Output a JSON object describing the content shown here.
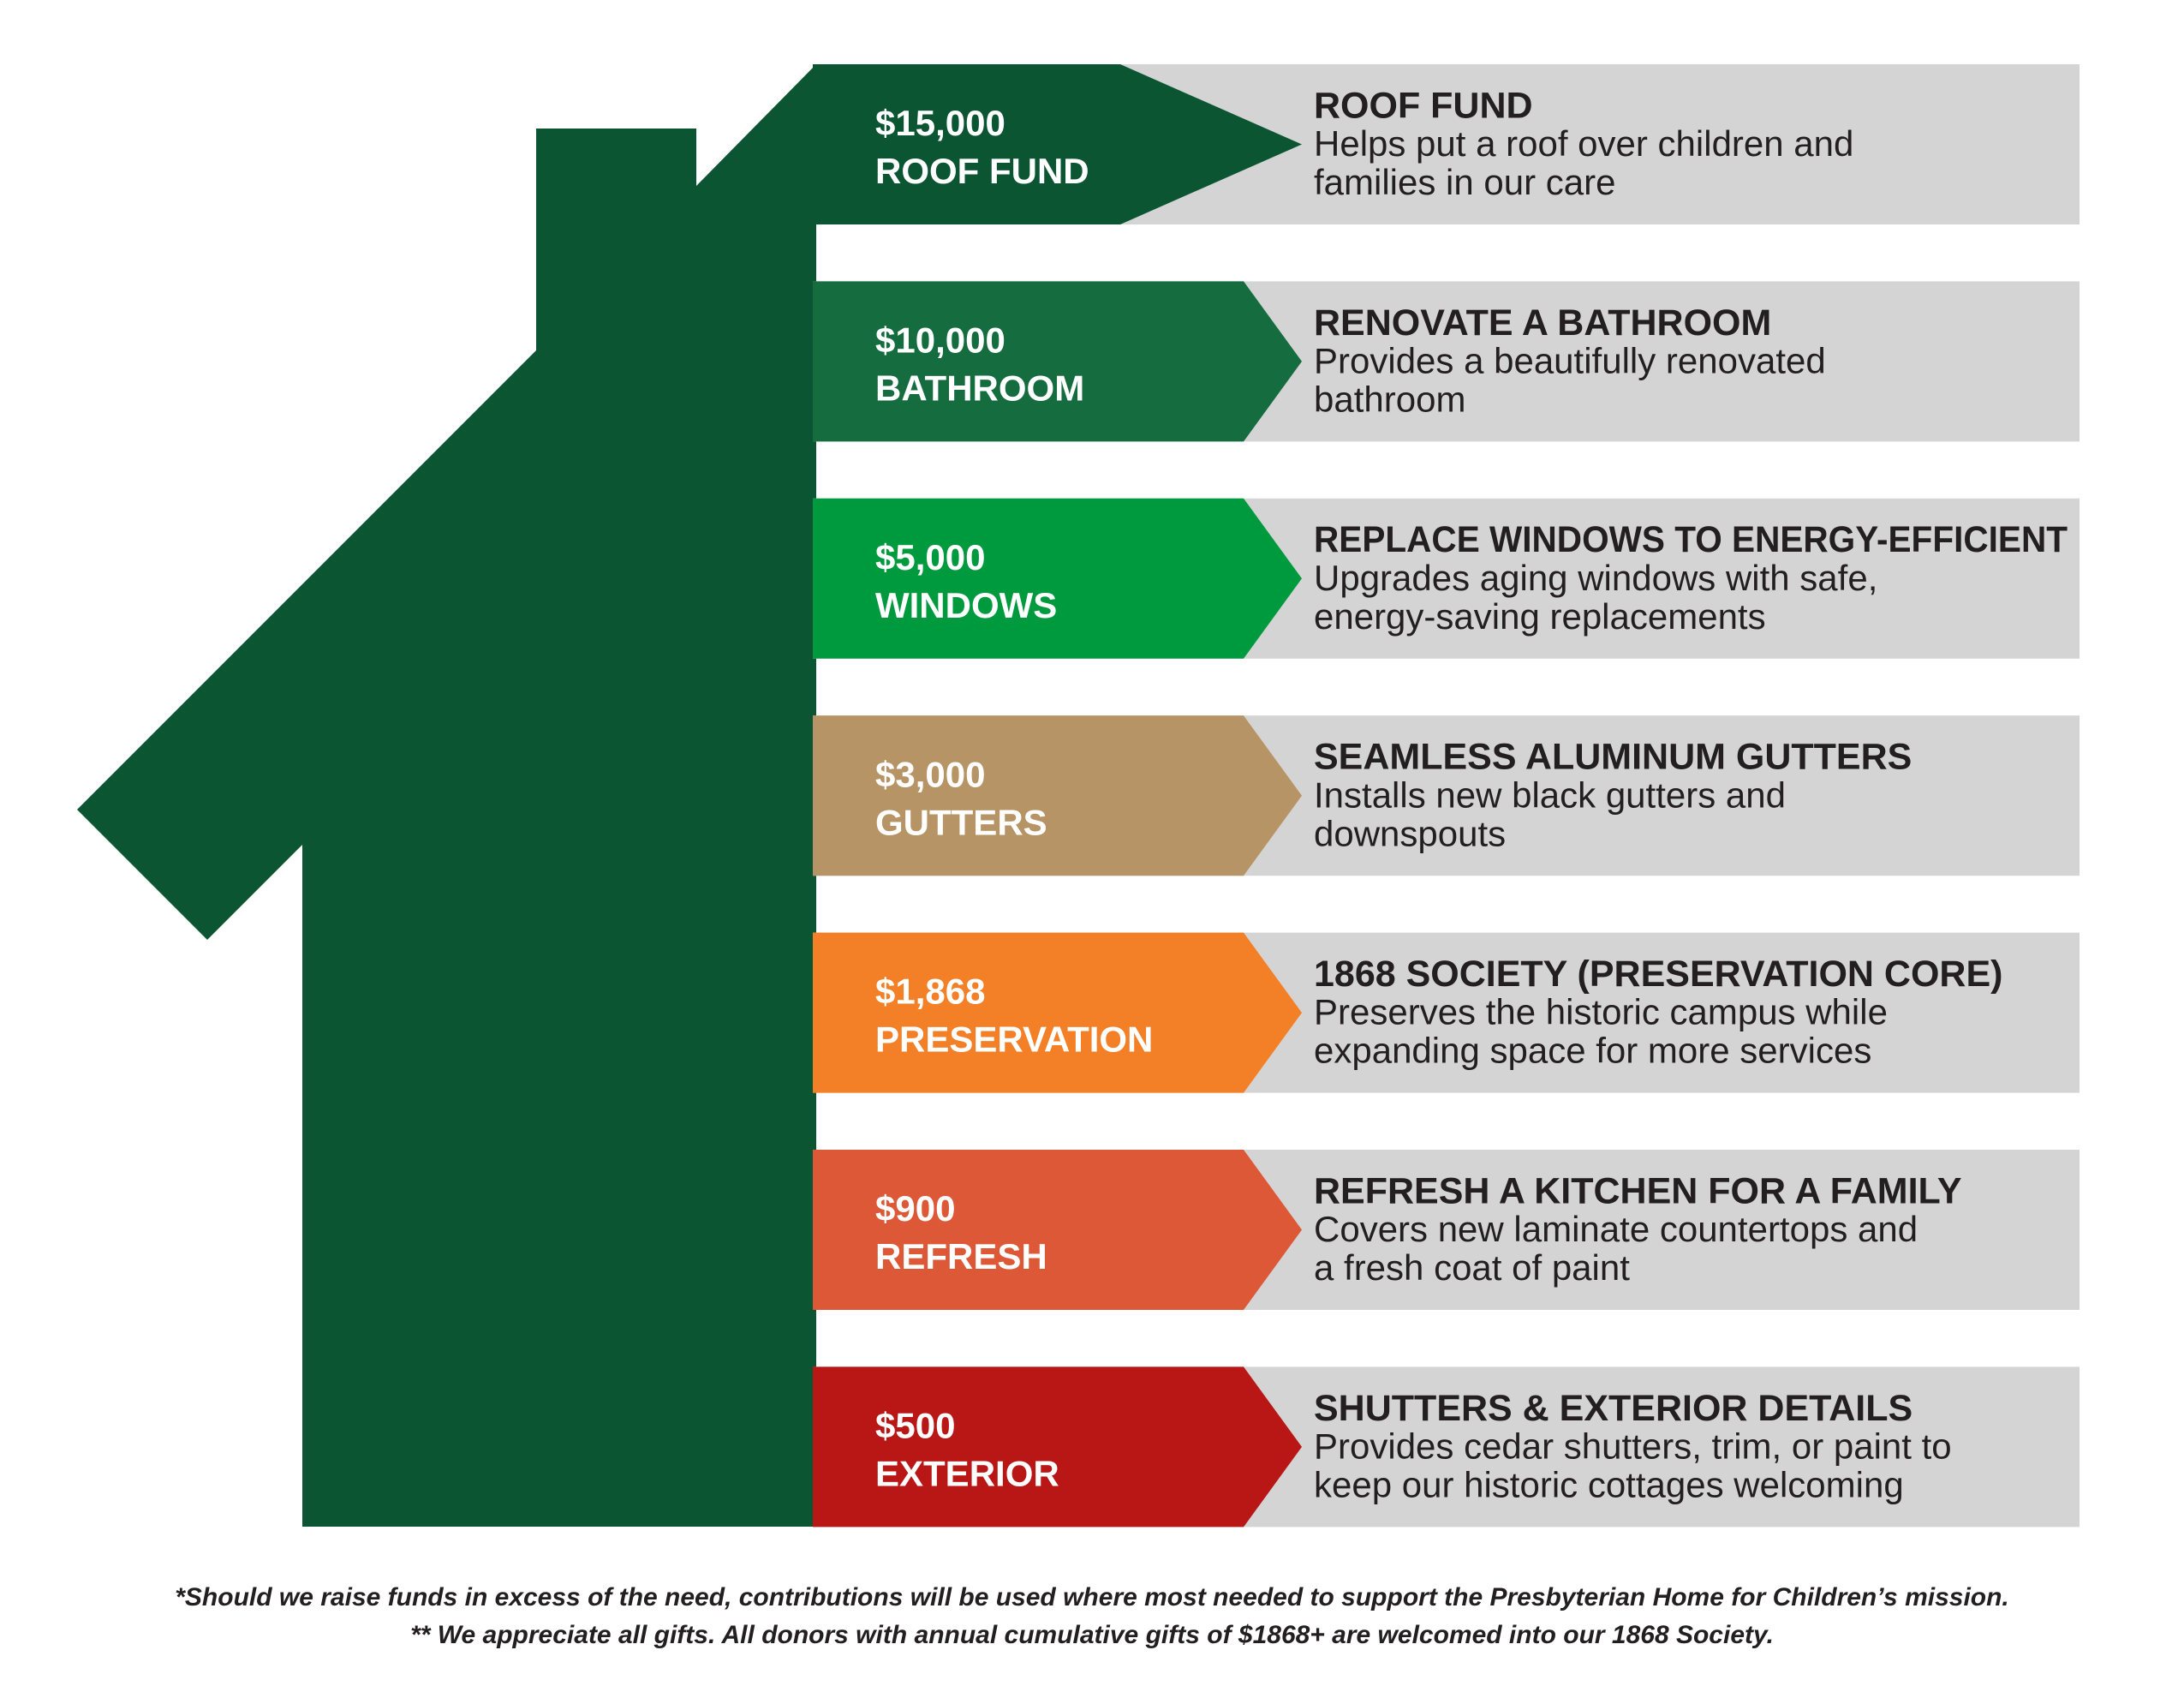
{
  "tiers": [
    {
      "amount": "$15,000",
      "label": "ROOF FUND",
      "title": "ROOF FUND",
      "description": [
        "Helps put a roof over children and",
        "families in our care"
      ],
      "color": "#0b5532"
    },
    {
      "amount": "$10,000",
      "label": "BATHROOM",
      "title": "RENOVATE A BATHROOM",
      "description": [
        "Provides a beautifully renovated",
        "bathroom"
      ],
      "color": "#146c3f"
    },
    {
      "amount": "$5,000",
      "label": "WINDOWS",
      "title": "REPLACE WINDOWS TO ENERGY-EFFICIENT",
      "description": [
        "Upgrades aging windows with safe,",
        "energy-saving replacements"
      ],
      "color": "#009a3e"
    },
    {
      "amount": "$3,000",
      "label": "GUTTERS",
      "title": "SEAMLESS ALUMINUM GUTTERS",
      "description": [
        "Installs new black gutters and",
        "downspouts"
      ],
      "color": "#b79465"
    },
    {
      "amount": "$1,868",
      "label": "PRESERVATION",
      "title": "1868 SOCIETY (PRESERVATION CORE)",
      "description": [
        "Preserves the historic campus while",
        "expanding space for more services"
      ],
      "color": "#f37f26"
    },
    {
      "amount": "$900",
      "label": "REFRESH",
      "title": "REFRESH A KITCHEN FOR A FAMILY",
      "description": [
        "Covers new laminate countertops and",
        "a fresh coat of paint"
      ],
      "color": "#dc5836"
    },
    {
      "amount": "$500",
      "label": "EXTERIOR",
      "title": "SHUTTERS & EXTERIOR DETAILS",
      "description": [
        "Provides cedar shutters, trim, or paint to",
        "keep our historic cottages welcoming"
      ],
      "color": "#b81716"
    }
  ],
  "footnotes": [
    "*Should we raise funds in excess of the need, contributions will be used where most needed to support the Presbyterian Home for Children’s mission.",
    "** We appreciate all gifts. All donors with annual cumulative gifts of $1868+ are welcomed into our 1868 Society."
  ]
}
